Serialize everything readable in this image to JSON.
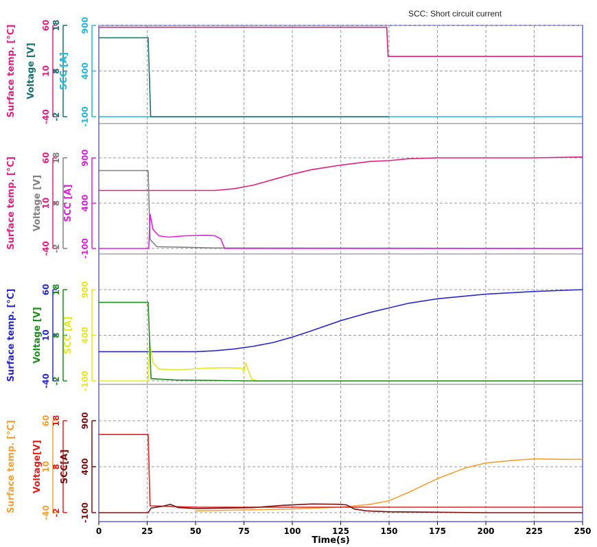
{
  "annotation": "SCC: Short circuit current",
  "colors": {
    "grid": "#9a9a9a",
    "frame": "#3a3ac8",
    "panel_border": "#777777"
  },
  "chart_data": {
    "type": "line",
    "xlabel": "Time(s)",
    "xlim": [
      0,
      250
    ],
    "x_ticks": [
      "0",
      "25",
      "50",
      "75",
      "100",
      "125",
      "150",
      "175",
      "200",
      "225",
      "250"
    ],
    "panels": [
      {
        "axes": [
          {
            "label": "Surface temp. [°C]",
            "color": "#e0207f",
            "ticks": [
              "60",
              "10",
              "-40"
            ],
            "range": [
              -40,
              60
            ]
          },
          {
            "label": "Voltage [V]",
            "color": "#1a7070",
            "ticks": [
              "18",
              "8",
              "-2"
            ],
            "range": [
              -2,
              18
            ]
          },
          {
            "label": "SCC [A]",
            "color": "#20b8e0",
            "ticks": [
              "900",
              "400",
              "-100"
            ],
            "range": [
              -100,
              900
            ]
          }
        ],
        "series": [
          {
            "axis": 0,
            "color": "#e0207f",
            "points": [
              [
                0,
                58
              ],
              [
                148.8,
                58
              ],
              [
                149.5,
                26
              ],
              [
                250,
                26
              ]
            ]
          },
          {
            "axis": 2,
            "color": "#20b8e0",
            "points": [
              [
                0,
                -100
              ],
              [
                250,
                -100
              ]
            ]
          },
          {
            "axis": 1,
            "color": "#1a7070",
            "points": [
              [
                0,
                15.3
              ],
              [
                25.5,
                15.3
              ],
              [
                26.8,
                -2
              ],
              [
                150,
                -2
              ]
            ]
          }
        ]
      },
      {
        "axes": [
          {
            "label": "Surface temp. [°C]",
            "color": "#e0207f",
            "ticks": [
              "60",
              "10",
              "-40"
            ],
            "range": [
              -40,
              60
            ]
          },
          {
            "label": "Voltage [V]",
            "color": "#808080",
            "ticks": [
              "18",
              "8",
              "-2"
            ],
            "range": [
              -2,
              18
            ]
          },
          {
            "label": "SCC [A]",
            "color": "#e020e0",
            "ticks": [
              "900",
              "400",
              "-100"
            ],
            "range": [
              -100,
              900
            ]
          }
        ],
        "series": [
          {
            "axis": 0,
            "color": "#e0207f",
            "points": [
              [
                0,
                24
              ],
              [
                60,
                24
              ],
              [
                70,
                26
              ],
              [
                80,
                30
              ],
              [
                90,
                36
              ],
              [
                100,
                42
              ],
              [
                110,
                47
              ],
              [
                125,
                52
              ],
              [
                140,
                56
              ],
              [
                150,
                57
              ],
              [
                160,
                59
              ],
              [
                175,
                60
              ],
              [
                200,
                60
              ],
              [
                225,
                60
              ],
              [
                250,
                61
              ]
            ]
          },
          {
            "axis": 1,
            "color": "#808080",
            "points": [
              [
                0,
                15.2
              ],
              [
                25.5,
                15.2
              ],
              [
                26.5,
                0
              ],
              [
                30,
                -1.6
              ],
              [
                60,
                -1.9
              ],
              [
                250,
                -2
              ]
            ]
          },
          {
            "axis": 2,
            "color": "#e020e0",
            "points": [
              [
                0,
                -100
              ],
              [
                25.8,
                -100
              ],
              [
                26.5,
                280
              ],
              [
                28,
                110
              ],
              [
                31,
                40
              ],
              [
                36,
                25
              ],
              [
                45,
                40
              ],
              [
                55,
                45
              ],
              [
                60,
                40
              ],
              [
                63,
                5
              ],
              [
                65,
                -100
              ],
              [
                250,
                -100
              ]
            ]
          }
        ]
      },
      {
        "axes": [
          {
            "label": "Surface temp. [°C]",
            "color": "#2828c8",
            "ticks": [
              "60",
              "10",
              "-40"
            ],
            "range": [
              -40,
              60
            ]
          },
          {
            "label": "Voltage [V]",
            "color": "#1e8c1e",
            "ticks": [
              "18",
              "8",
              "-2"
            ],
            "range": [
              -2,
              18
            ]
          },
          {
            "label": "SCC [A]",
            "color": "#e8e820",
            "ticks": [
              "900",
              "400",
              "-100"
            ],
            "range": [
              -100,
              900
            ]
          }
        ],
        "series": [
          {
            "axis": 0,
            "color": "#2828c8",
            "points": [
              [
                0,
                -8
              ],
              [
                50,
                -8
              ],
              [
                60,
                -7
              ],
              [
                70,
                -5
              ],
              [
                80,
                -2
              ],
              [
                90,
                2
              ],
              [
                100,
                8
              ],
              [
                110,
                15
              ],
              [
                125,
                26
              ],
              [
                140,
                35
              ],
              [
                150,
                40
              ],
              [
                160,
                45
              ],
              [
                175,
                50
              ],
              [
                200,
                55
              ],
              [
                225,
                58
              ],
              [
                250,
                60
              ]
            ]
          },
          {
            "axis": 2,
            "color": "#e8e820",
            "points": [
              [
                0,
                -100
              ],
              [
                25.5,
                -100
              ],
              [
                26.2,
                330
              ],
              [
                28,
                100
              ],
              [
                31,
                30
              ],
              [
                40,
                20
              ],
              [
                55,
                40
              ],
              [
                65,
                45
              ],
              [
                74,
                40
              ],
              [
                75,
                0
              ],
              [
                76,
                100
              ],
              [
                77,
                30
              ],
              [
                79,
                -80
              ],
              [
                82,
                -100
              ],
              [
                250,
                -100
              ]
            ]
          },
          {
            "axis": 1,
            "color": "#1e8c1e",
            "points": [
              [
                0,
                15.2
              ],
              [
                25.5,
                15.2
              ],
              [
                27,
                -1.5
              ],
              [
                40,
                -1.8
              ],
              [
                80,
                -2
              ],
              [
                250,
                -2
              ]
            ]
          }
        ]
      },
      {
        "axes": [
          {
            "label": "Surface temp. [°C]",
            "color": "#f5a030",
            "ticks": [
              "60",
              "10",
              "-40"
            ],
            "range": [
              -40,
              60
            ]
          },
          {
            "label": "Voltage[V]",
            "color": "#e02020",
            "ticks": [
              "18",
              "8",
              "-2"
            ],
            "range": [
              -2,
              18
            ]
          },
          {
            "label": "SCC[A]",
            "color": "#7a1010",
            "ticks": [
              "900",
              "400",
              "-100"
            ],
            "range": [
              -100,
              900
            ]
          }
        ],
        "series": [
          {
            "axis": 0,
            "color": "#f5a030",
            "points": [
              [
                50,
                -38
              ],
              [
                75,
                -37
              ],
              [
                100,
                -36
              ],
              [
                125,
                -34
              ],
              [
                140,
                -31
              ],
              [
                150,
                -27
              ],
              [
                160,
                -18
              ],
              [
                175,
                -3
              ],
              [
                190,
                9
              ],
              [
                200,
                14
              ],
              [
                215,
                17
              ],
              [
                225,
                18.5
              ],
              [
                240,
                18
              ],
              [
                250,
                18
              ]
            ]
          },
          {
            "axis": 1,
            "color": "#e02020",
            "points": [
              [
                0,
                15
              ],
              [
                25.5,
                15
              ],
              [
                26.5,
                -0.5
              ],
              [
                50,
                -0.8
              ],
              [
                100,
                -0.8
              ],
              [
                150,
                -0.8
              ],
              [
                200,
                -0.8
              ],
              [
                250,
                -0.8
              ]
            ]
          },
          {
            "axis": 2,
            "color": "#7a1010",
            "points": [
              [
                0,
                -100
              ],
              [
                25.5,
                -100
              ],
              [
                27,
                -50
              ],
              [
                33,
                -30
              ],
              [
                37,
                -10
              ],
              [
                41,
                -45
              ],
              [
                50,
                -55
              ],
              [
                65,
                -50
              ],
              [
                80,
                -45
              ],
              [
                95,
                -20
              ],
              [
                110,
                -5
              ],
              [
                123,
                -8
              ],
              [
                128,
                -15
              ],
              [
                132,
                -60
              ],
              [
                138,
                -80
              ],
              [
                150,
                -90
              ],
              [
                200,
                -100
              ],
              [
                250,
                -100
              ]
            ]
          }
        ]
      }
    ]
  }
}
